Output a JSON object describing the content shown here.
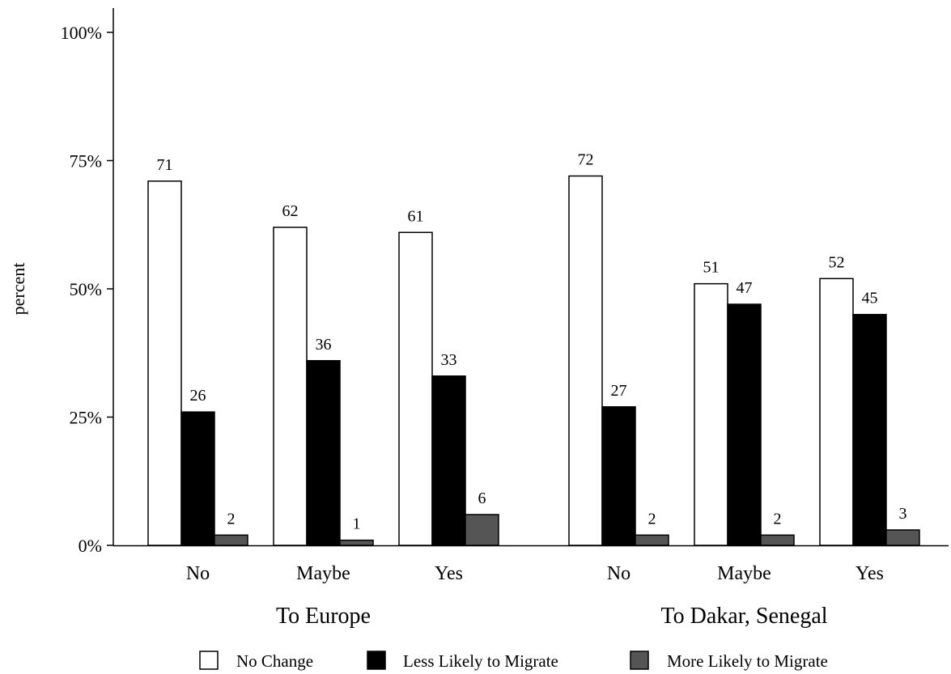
{
  "chart_data": {
    "type": "bar",
    "ylabel": "percent",
    "xlabel": "",
    "ylim": [
      0,
      100
    ],
    "yticks": [
      {
        "value": 0,
        "label": "0%"
      },
      {
        "value": 25,
        "label": "25%"
      },
      {
        "value": 50,
        "label": "50%"
      },
      {
        "value": 75,
        "label": "75%"
      },
      {
        "value": 100,
        "label": "100%"
      }
    ],
    "groups": [
      {
        "name": "To Europe",
        "categories": [
          "No",
          "Maybe",
          "Yes"
        ],
        "series": [
          {
            "name": "No Change",
            "values": [
              71,
              62,
              61
            ],
            "labels": [
              "71",
              "62",
              "61"
            ]
          },
          {
            "name": "Less Likely to Migrate",
            "values": [
              26,
              36,
              33
            ],
            "labels": [
              "26",
              "36",
              "33"
            ]
          },
          {
            "name": "More Likely to Migrate",
            "values": [
              2,
              1,
              6
            ],
            "labels": [
              "2",
              "1",
              "6"
            ]
          }
        ]
      },
      {
        "name": "To Dakar, Senegal",
        "categories": [
          "No",
          "Maybe",
          "Yes"
        ],
        "series": [
          {
            "name": "No Change",
            "values": [
              72,
              51,
              52
            ],
            "labels": [
              "72",
              "51",
              "52"
            ]
          },
          {
            "name": "Less Likely to Migrate",
            "values": [
              27,
              47,
              45
            ],
            "labels": [
              "27",
              "47",
              "45"
            ]
          },
          {
            "name": "More Likely to Migrate",
            "values": [
              2,
              2,
              3
            ],
            "labels": [
              "2",
              "2",
              "3"
            ]
          }
        ]
      }
    ],
    "legend": {
      "position": "bottom",
      "entries": [
        {
          "name": "No Change",
          "color": "#ffffff"
        },
        {
          "name": "Less Likely to Migrate",
          "color": "#000000"
        },
        {
          "name": "More Likely to Migrate",
          "color": "#555555"
        }
      ]
    },
    "grid": false
  }
}
